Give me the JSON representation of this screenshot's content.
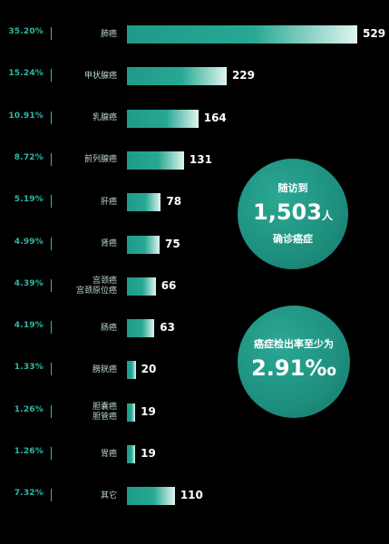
{
  "chart_data": {
    "type": "bar",
    "orientation": "horizontal",
    "categories": [
      [
        "肺癌"
      ],
      [
        "甲状腺癌"
      ],
      [
        "乳腺癌"
      ],
      [
        "前列腺癌"
      ],
      [
        "肝癌"
      ],
      [
        "肾癌"
      ],
      [
        "宫颈癌",
        "宫颈原位癌"
      ],
      [
        "肠癌"
      ],
      [
        "膀胱癌"
      ],
      [
        "胆囊癌",
        "胆管癌"
      ],
      [
        "胃癌"
      ],
      [
        "其它"
      ]
    ],
    "values": [
      529,
      229,
      164,
      131,
      78,
      75,
      66,
      63,
      20,
      19,
      19,
      110
    ],
    "value_labels": [
      "529",
      "229",
      "164",
      "131",
      "78",
      "75",
      "66",
      "63",
      "20",
      "19",
      "19",
      "110"
    ],
    "percentages": [
      "35.20%",
      "15.24%",
      "10.91%",
      "8.72%",
      "5.19%",
      "4.99%",
      "4.39%",
      "4.19%",
      "1.33%",
      "1.26%",
      "1.26%",
      "7.32%"
    ],
    "xlim": [
      0,
      529
    ],
    "grid": false,
    "colors": {
      "bar_start": "#1f9a88",
      "bar_end": "#dff4ef",
      "percent_text": "#2fb8a2",
      "background": "#000000"
    }
  },
  "summary": {
    "followup": {
      "line1": "随访到",
      "number": "1,503",
      "unit": "人",
      "line2": "确诊癌症"
    },
    "detection": {
      "line1": "癌症检出率至少为",
      "number": "2.91‰"
    }
  }
}
